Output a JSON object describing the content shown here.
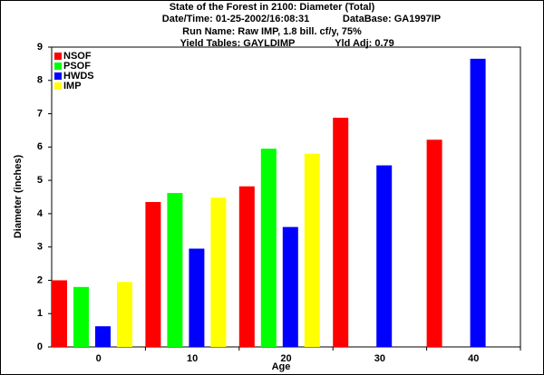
{
  "chart_data": {
    "type": "bar",
    "title": "State of the Forest in 2100: Diameter (Total)",
    "subtitle_lines": [
      [
        "Date/Time: 01-25-2002/16:08:31",
        "DataBase: GA1997IP"
      ],
      [
        "Run Name: Raw IMP, 1.8 bill. cf/y, 75%"
      ],
      [
        "Yield Tables: GAYLDIMP",
        "Yld Adj: 0.79"
      ]
    ],
    "x_label": "Age",
    "y_label": "Diameter (inches)",
    "categories": [
      "0",
      "10",
      "20",
      "30",
      "40"
    ],
    "series": [
      {
        "name": "NSOF",
        "color": "#ff0000",
        "values": [
          2.0,
          4.35,
          4.82,
          6.88,
          6.22
        ]
      },
      {
        "name": "PSOF",
        "color": "#00ff00",
        "values": [
          1.8,
          4.62,
          5.95,
          null,
          null
        ]
      },
      {
        "name": "HWDS",
        "color": "#0000ff",
        "values": [
          0.62,
          2.95,
          3.6,
          5.45,
          8.65
        ]
      },
      {
        "name": "IMP",
        "color": "#ffff00",
        "values": [
          1.95,
          4.48,
          5.8,
          null,
          null
        ]
      }
    ],
    "ylim": [
      0,
      9
    ],
    "yticks": [
      0,
      1,
      2,
      3,
      4,
      5,
      6,
      7,
      8,
      9
    ],
    "legend": "upper-left"
  }
}
